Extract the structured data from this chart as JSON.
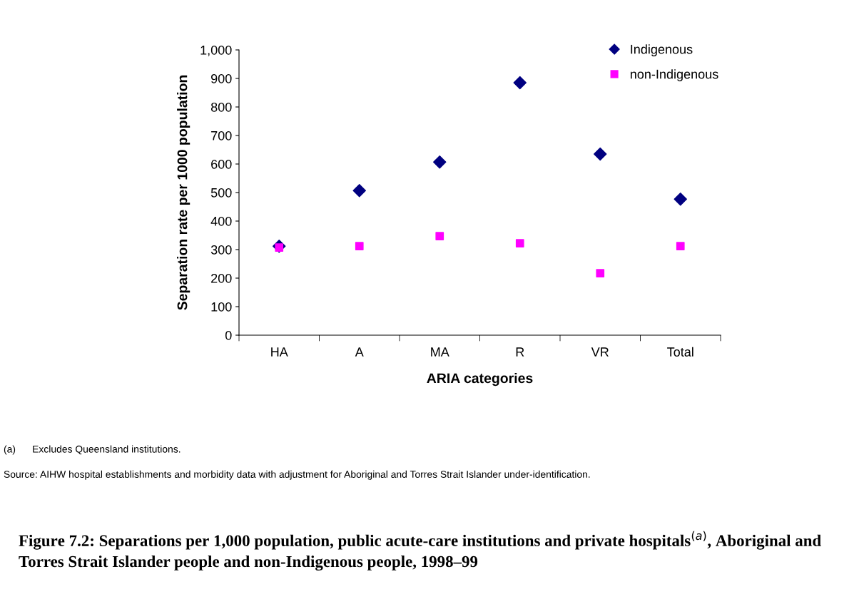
{
  "chart_data": {
    "type": "scatter",
    "title": "Figure 7.2: Separations per 1,000 population, public acute-care institutions and private hospitals$^{(a)}$, Aboriginal and Torres Strait Islander people and non-Indigenous people, 1998–99",
    "xlabel": "ARIA categories",
    "ylabel": "Separation rate per 1000 population",
    "categories": [
      "HA",
      "A",
      "MA",
      "R",
      "VR",
      "Total"
    ],
    "series": [
      {
        "name": "Indigenous",
        "color": "#000080",
        "marker": "diamond",
        "values": [
          312,
          507,
          607,
          885,
          635,
          477
        ]
      },
      {
        "name": "non-Indigenous",
        "color": "#ff00ff",
        "marker": "square",
        "values": [
          307,
          312,
          347,
          322,
          217,
          312
        ]
      }
    ],
    "ylim": [
      0,
      1000
    ],
    "yticks": [
      0,
      100,
      200,
      300,
      400,
      500,
      600,
      700,
      800,
      900,
      {
        "value": 1000,
        "label": "1,000"
      }
    ],
    "grid": false,
    "legend": "top right",
    "annotations": [
      "(a)      Excludes Queensland institutions.",
      "Source: AIHW hospital establishments and morbidity data with adjustment for Aboriginal and Torres Strait Islander under-identification."
    ]
  }
}
